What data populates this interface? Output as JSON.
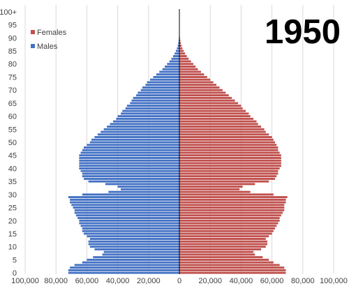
{
  "chart_data": {
    "type": "bar",
    "orientation": "horizontal-population-pyramid",
    "title": "1950",
    "xlabel": "",
    "ylabel": "",
    "xlim": [
      -100000,
      100000
    ],
    "grid": true,
    "legend": "top-left",
    "x_ticks": [
      "100,000",
      "80,000",
      "60,000",
      "40,000",
      "20,000",
      "0",
      "20,000",
      "40,000",
      "60,000",
      "80,000",
      "100,000"
    ],
    "y_ticks": [
      "0",
      "5",
      "10",
      "15",
      "20",
      "25",
      "30",
      "35",
      "40",
      "45",
      "50",
      "55",
      "60",
      "65",
      "70",
      "75",
      "80",
      "85",
      "90",
      "95",
      "100+"
    ],
    "categories": [
      "0",
      "1",
      "2",
      "3",
      "4",
      "5",
      "6",
      "7",
      "8",
      "9",
      "10",
      "11",
      "12",
      "13",
      "14",
      "15",
      "16",
      "17",
      "18",
      "19",
      "20",
      "21",
      "22",
      "23",
      "24",
      "25",
      "26",
      "27",
      "28",
      "29",
      "30",
      "31",
      "32",
      "33",
      "34",
      "35",
      "36",
      "37",
      "38",
      "39",
      "40",
      "41",
      "42",
      "43",
      "44",
      "45",
      "46",
      "47",
      "48",
      "49",
      "50",
      "51",
      "52",
      "53",
      "54",
      "55",
      "56",
      "57",
      "58",
      "59",
      "60",
      "61",
      "62",
      "63",
      "64",
      "65",
      "66",
      "67",
      "68",
      "69",
      "70",
      "71",
      "72",
      "73",
      "74",
      "75",
      "76",
      "77",
      "78",
      "79",
      "80",
      "81",
      "82",
      "83",
      "84",
      "85",
      "86",
      "87",
      "88",
      "89",
      "90",
      "91",
      "92",
      "93",
      "94",
      "95",
      "96",
      "97",
      "98",
      "99",
      "100+"
    ],
    "series": [
      {
        "name": "Males",
        "color": "#4472c4",
        "values": [
          72000,
          72000,
          71000,
          68000,
          63000,
          60000,
          56000,
          50000,
          49000,
          55000,
          58000,
          59000,
          59000,
          58000,
          60000,
          62000,
          63000,
          63000,
          64000,
          65000,
          65000,
          66000,
          67000,
          68000,
          68000,
          69000,
          70000,
          71000,
          71000,
          72000,
          63000,
          46000,
          38000,
          40000,
          48000,
          59000,
          62000,
          63000,
          63000,
          64000,
          65000,
          65000,
          65000,
          65000,
          65000,
          65000,
          64000,
          63000,
          62000,
          60000,
          58000,
          57000,
          55000,
          53000,
          51000,
          49000,
          47000,
          45000,
          43000,
          41000,
          40000,
          38000,
          37000,
          35000,
          34000,
          32000,
          31000,
          30000,
          28000,
          27000,
          25000,
          24000,
          22000,
          21000,
          19000,
          17000,
          15000,
          13000,
          11000,
          9500,
          8000,
          6500,
          5200,
          4100,
          3100,
          2300,
          1600,
          1100,
          750,
          500,
          300,
          200,
          120,
          80,
          50,
          30,
          20,
          10,
          5,
          2,
          1
        ]
      },
      {
        "name": "Females",
        "color": "#c0504d",
        "values": [
          69000,
          69000,
          68000,
          65000,
          61000,
          58000,
          54000,
          49000,
          48000,
          53000,
          56000,
          57000,
          57000,
          56000,
          58000,
          60000,
          61000,
          62000,
          63000,
          64000,
          65000,
          65000,
          66000,
          67000,
          68000,
          68000,
          68000,
          69000,
          69000,
          70000,
          61000,
          46000,
          39000,
          41000,
          49000,
          58000,
          62000,
          63000,
          64000,
          64000,
          65000,
          66000,
          66000,
          66000,
          66000,
          66000,
          65000,
          64000,
          64000,
          63000,
          62000,
          61000,
          60000,
          58000,
          56000,
          55000,
          53000,
          51000,
          50000,
          48000,
          46000,
          45000,
          43000,
          41000,
          40000,
          38000,
          36000,
          34000,
          32000,
          30000,
          28000,
          26000,
          24000,
          22000,
          20000,
          18000,
          16000,
          14000,
          12000,
          10500,
          9000,
          7500,
          6000,
          4800,
          3700,
          2800,
          2000,
          1400,
          950,
          620,
          380,
          230,
          140,
          85,
          50,
          30,
          18,
          10,
          5,
          2,
          1
        ]
      }
    ]
  }
}
